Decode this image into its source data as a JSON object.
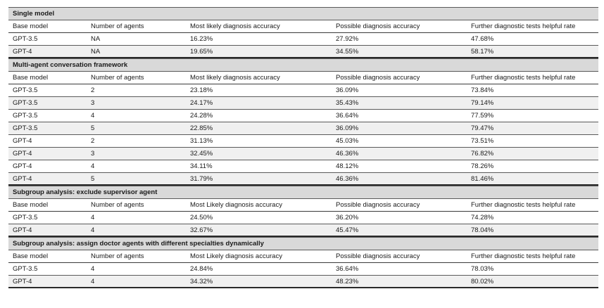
{
  "sections": [
    {
      "title": "Single model",
      "headers": [
        "Base model",
        "Number of agents",
        "Most likely diagnosis accuracy",
        "Possible diagnosis accuracy",
        "Further diagnostic tests helpful rate"
      ],
      "rows": [
        [
          "GPT-3.5",
          "NA",
          "16.23%",
          "27.92%",
          "47.68%"
        ],
        [
          "GPT-4",
          "NA",
          "19.65%",
          "34.55%",
          "58.17%"
        ]
      ]
    },
    {
      "title": "Multi-agent conversation framework",
      "headers": [
        "Base model",
        "Number of agents",
        "Most likely diagnosis accuracy",
        "Possible diagnosis accuracy",
        "Further diagnostic tests helpful rate"
      ],
      "rows": [
        [
          "GPT-3.5",
          "2",
          "23.18%",
          "36.09%",
          "73.84%"
        ],
        [
          "GPT-3.5",
          "3",
          "24.17%",
          "35.43%",
          "79.14%"
        ],
        [
          "GPT-3.5",
          "4",
          "24.28%",
          "36.64%",
          "77.59%"
        ],
        [
          "GPT-3.5",
          "5",
          "22.85%",
          "36.09%",
          "79.47%"
        ],
        [
          "GPT-4",
          "2",
          "31.13%",
          "45.03%",
          "73.51%"
        ],
        [
          "GPT-4",
          "3",
          "32.45%",
          "46.36%",
          "76.82%"
        ],
        [
          "GPT-4",
          "4",
          "34.11%",
          "48.12%",
          "78.26%"
        ],
        [
          "GPT-4",
          "5",
          "31.79%",
          "46.36%",
          "81.46%"
        ]
      ]
    },
    {
      "title": "Subgroup analysis: exclude supervisor agent",
      "headers": [
        "Base model",
        "Number of agents",
        "Most Likely diagnosis accuracy",
        "Possible diagnosis accuracy",
        "Further diagnostic tests helpful rate"
      ],
      "rows": [
        [
          "GPT-3.5",
          "4",
          "24.50%",
          "36.20%",
          "74.28%"
        ],
        [
          "GPT-4",
          "4",
          "32.67%",
          "45.47%",
          "78.04%"
        ]
      ]
    },
    {
      "title": "Subgroup analysis: assign doctor agents with different specialties dynamically",
      "headers": [
        "Base model",
        "Number of agents",
        "Most Likely diagnosis accuracy",
        "Possible diagnosis accuracy",
        "Further diagnostic tests helpful rate"
      ],
      "rows": [
        [
          "GPT-3.5",
          "4",
          "24.84%",
          "36.64%",
          "78.03%"
        ],
        [
          "GPT-4",
          "4",
          "34.32%",
          "48.23%",
          "80.02%"
        ]
      ]
    }
  ]
}
